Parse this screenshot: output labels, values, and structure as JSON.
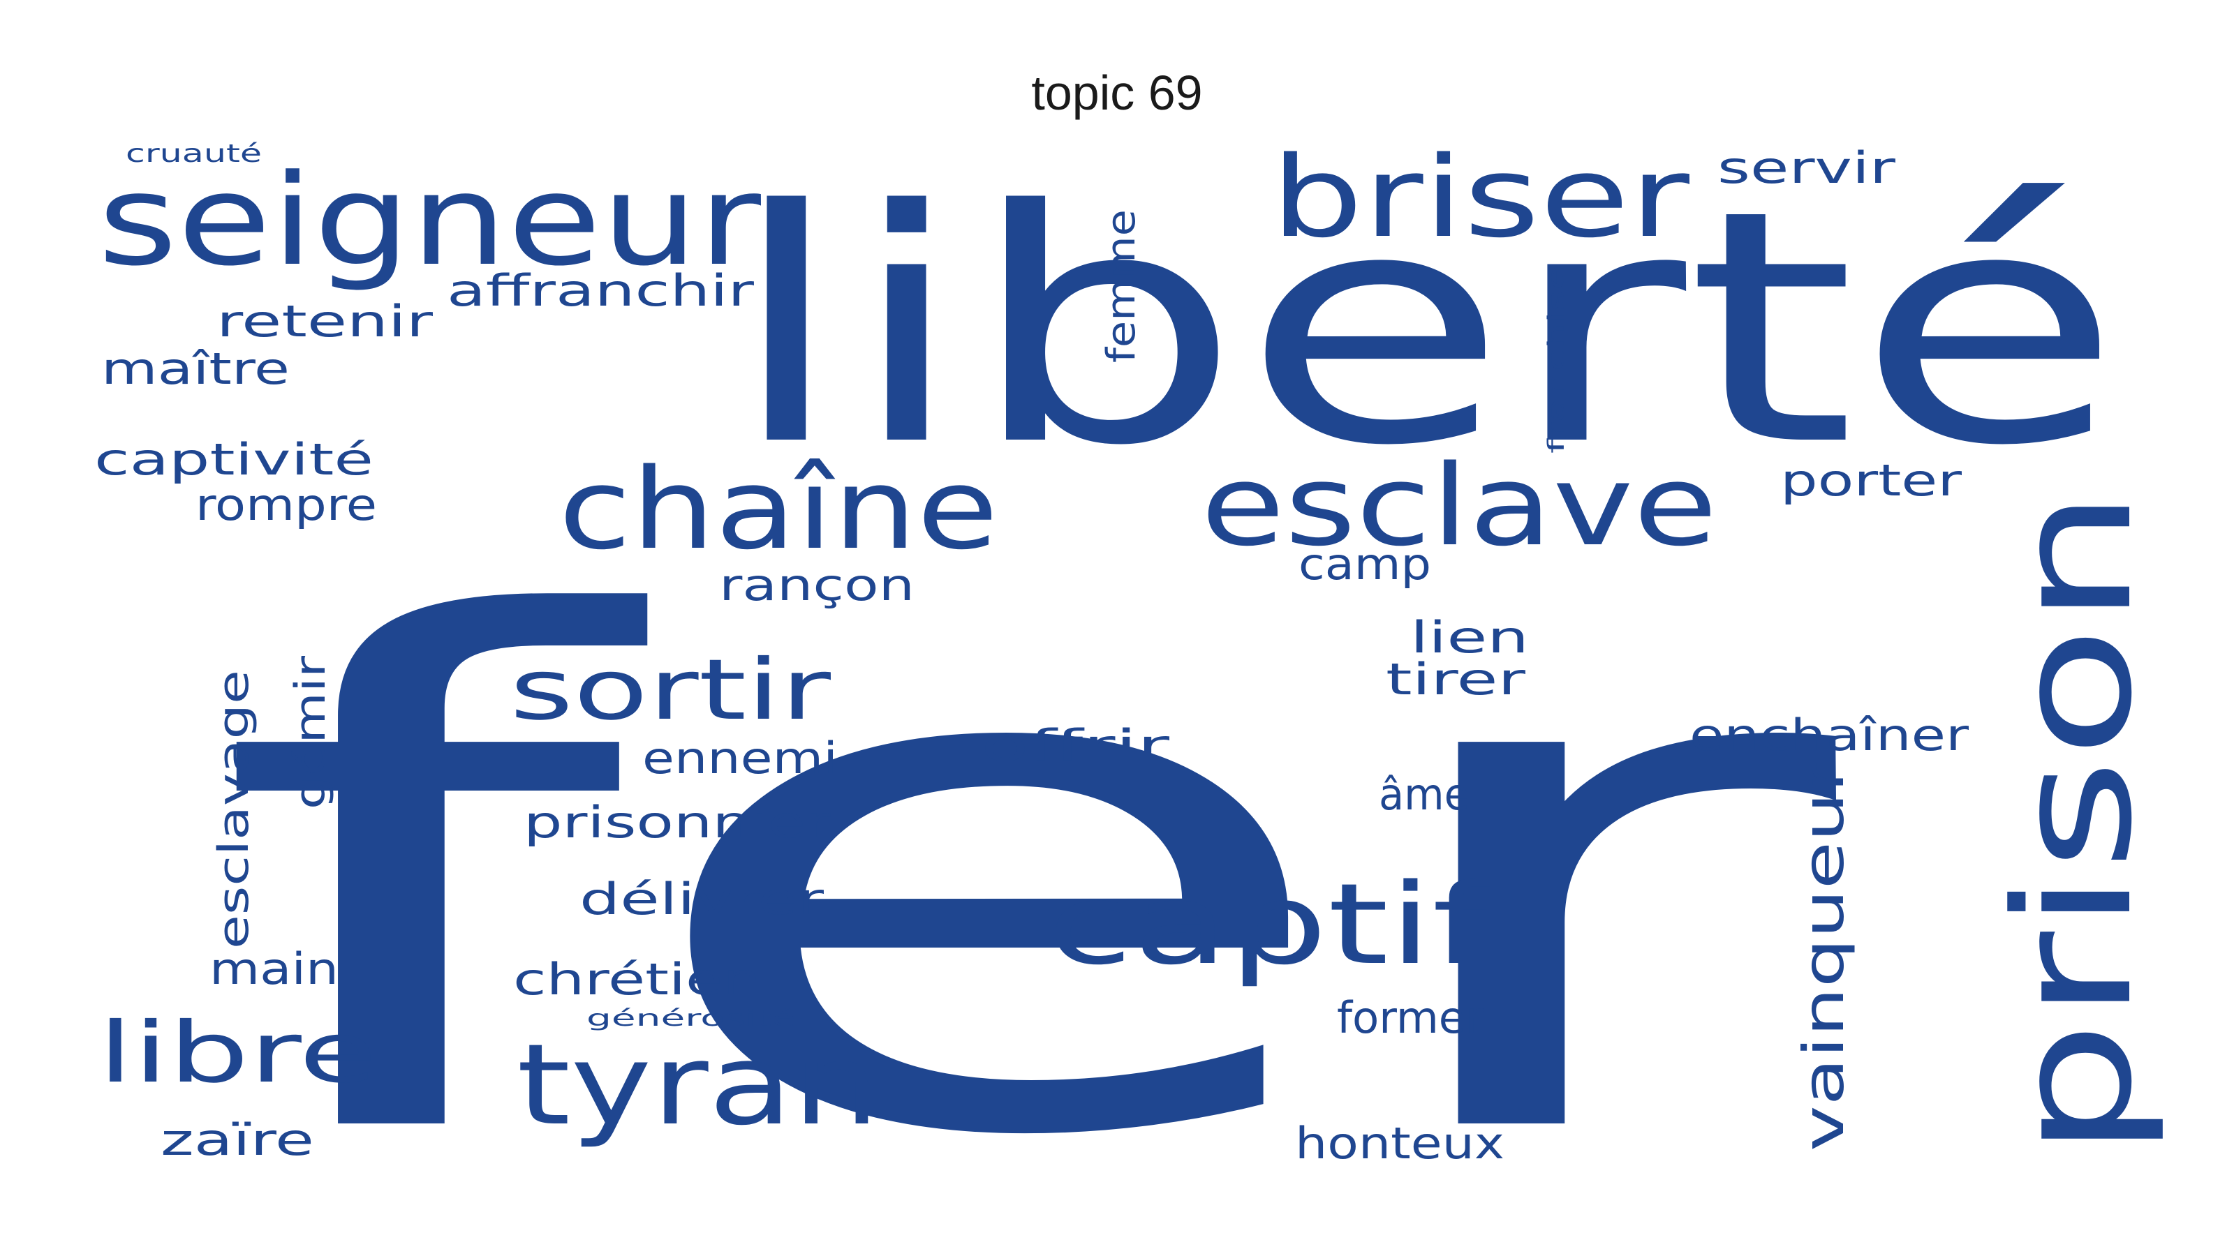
{
  "title": "topic 69",
  "word_color": "#1f4690",
  "background_color": "#ffffff",
  "words": [
    {
      "name": "fer",
      "text": "fer"
    },
    {
      "name": "liberte",
      "text": "liberté"
    },
    {
      "name": "seigneur",
      "text": "seigneur"
    },
    {
      "name": "briser",
      "text": "briser"
    },
    {
      "name": "prison",
      "text": "prison"
    },
    {
      "name": "chaine",
      "text": "chaîne"
    },
    {
      "name": "esclave",
      "text": "esclave"
    },
    {
      "name": "captif",
      "text": "captif"
    },
    {
      "name": "tyran",
      "text": "tyran"
    },
    {
      "name": "sortir",
      "text": "sortir"
    },
    {
      "name": "libre",
      "text": "libre"
    },
    {
      "name": "vainqueur",
      "text": "vainqueur"
    },
    {
      "name": "affranchir",
      "text": "affranchir"
    },
    {
      "name": "retenir",
      "text": "retenir"
    },
    {
      "name": "maitre",
      "text": "maître"
    },
    {
      "name": "captivite",
      "text": "captivité"
    },
    {
      "name": "rompre",
      "text": "rompre"
    },
    {
      "name": "esclavage",
      "text": "esclavage"
    },
    {
      "name": "gemir",
      "text": "gémir"
    },
    {
      "name": "rancon",
      "text": "rançon"
    },
    {
      "name": "ennemi",
      "text": "ennemi"
    },
    {
      "name": "prisonnier",
      "text": "prisonnier"
    },
    {
      "name": "delivrer",
      "text": "délivrer"
    },
    {
      "name": "chretien",
      "text": "chrétien"
    },
    {
      "name": "main",
      "text": "main"
    },
    {
      "name": "zaire",
      "text": "zaïre"
    },
    {
      "name": "offrir",
      "text": "offrir"
    },
    {
      "name": "camp",
      "text": "camp"
    },
    {
      "name": "lien",
      "text": "lien"
    },
    {
      "name": "tirer",
      "text": "tirer"
    },
    {
      "name": "ame",
      "text": "âme"
    },
    {
      "name": "former",
      "text": "former"
    },
    {
      "name": "honteux",
      "text": "honteux"
    },
    {
      "name": "porter",
      "text": "porter"
    },
    {
      "name": "servir",
      "text": "servir"
    },
    {
      "name": "enchainer",
      "text": "enchaîner"
    },
    {
      "name": "femme",
      "text": "femme"
    },
    {
      "name": "franchise",
      "text": "franchise"
    },
    {
      "name": "cruaute",
      "text": "cruauté"
    },
    {
      "name": "generosite",
      "text": "générosité"
    }
  ]
}
